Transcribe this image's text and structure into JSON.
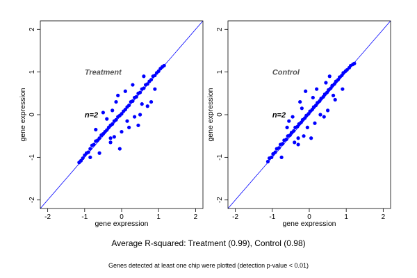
{
  "chart_data": [
    {
      "type": "scatter",
      "panel_label": "Treatment",
      "annotation": "n=2",
      "xlabel": "gene expression",
      "ylabel": "gene expression",
      "xlim": [
        -2.2,
        2.2
      ],
      "ylim": [
        -2.2,
        2.2
      ],
      "xticks": [
        -2,
        -1,
        0,
        1,
        2
      ],
      "yticks": [
        -2,
        -1,
        0,
        1,
        2
      ],
      "grid": false,
      "identity_line": true,
      "point_color": "#0000ff",
      "line_color": "#0000ff",
      "points": [
        [
          -1.15,
          -1.12
        ],
        [
          -1.1,
          -1.08
        ],
        [
          -1.05,
          -1.02
        ],
        [
          -1.0,
          -0.95
        ],
        [
          -0.95,
          -0.9
        ],
        [
          -0.9,
          -0.88
        ],
        [
          -0.85,
          -0.8
        ],
        [
          -0.8,
          -0.72
        ],
        [
          -0.75,
          -0.7
        ],
        [
          -0.7,
          -0.62
        ],
        [
          -0.65,
          -0.6
        ],
        [
          -0.6,
          -0.55
        ],
        [
          -0.55,
          -0.48
        ],
        [
          -0.5,
          -0.45
        ],
        [
          -0.45,
          -0.4
        ],
        [
          -0.4,
          -0.36
        ],
        [
          -0.35,
          -0.3
        ],
        [
          -0.3,
          -0.25
        ],
        [
          -0.25,
          -0.22
        ],
        [
          -0.2,
          -0.15
        ],
        [
          -0.15,
          -0.12
        ],
        [
          -0.1,
          -0.05
        ],
        [
          -0.05,
          -0.02
        ],
        [
          0.0,
          0.02
        ],
        [
          0.05,
          0.08
        ],
        [
          0.1,
          0.12
        ],
        [
          0.15,
          0.18
        ],
        [
          0.2,
          0.22
        ],
        [
          0.25,
          0.3
        ],
        [
          0.3,
          0.32
        ],
        [
          0.35,
          0.4
        ],
        [
          0.4,
          0.42
        ],
        [
          0.45,
          0.5
        ],
        [
          0.5,
          0.52
        ],
        [
          0.55,
          0.6
        ],
        [
          0.6,
          0.62
        ],
        [
          0.65,
          0.7
        ],
        [
          0.7,
          0.72
        ],
        [
          0.75,
          0.78
        ],
        [
          0.8,
          0.82
        ],
        [
          0.85,
          0.9
        ],
        [
          0.9,
          0.92
        ],
        [
          0.95,
          0.98
        ],
        [
          1.0,
          1.02
        ],
        [
          1.05,
          1.08
        ],
        [
          1.1,
          1.12
        ],
        [
          1.15,
          1.15
        ],
        [
          -0.3,
          -0.65
        ],
        [
          0.7,
          0.2
        ],
        [
          -0.5,
          0.05
        ],
        [
          0.1,
          0.55
        ],
        [
          -0.05,
          -0.8
        ],
        [
          -0.3,
          -0.55
        ],
        [
          -0.2,
          -0.52
        ],
        [
          0.35,
          -0.05
        ],
        [
          0.5,
          0.0
        ],
        [
          0.45,
          -0.25
        ],
        [
          -0.1,
          0.45
        ],
        [
          0.8,
          0.3
        ],
        [
          -0.7,
          -0.35
        ],
        [
          0.2,
          -0.3
        ],
        [
          -0.15,
          0.3
        ],
        [
          0.6,
          0.9
        ],
        [
          0.0,
          -0.4
        ],
        [
          -0.4,
          -0.1
        ],
        [
          0.3,
          0.7
        ],
        [
          -0.6,
          -0.9
        ],
        [
          0.9,
          0.6
        ],
        [
          -0.85,
          -1.0
        ],
        [
          0.15,
          -0.15
        ],
        [
          -0.25,
          0.1
        ],
        [
          0.55,
          0.25
        ]
      ]
    },
    {
      "type": "scatter",
      "panel_label": "Control",
      "annotation": "n=2",
      "xlabel": "gene expression",
      "ylabel": "gene expression",
      "xlim": [
        -2.2,
        2.2
      ],
      "ylim": [
        -2.2,
        2.2
      ],
      "xticks": [
        -2,
        -1,
        0,
        1,
        2
      ],
      "yticks": [
        -2,
        -1,
        0,
        1,
        2
      ],
      "grid": false,
      "identity_line": true,
      "point_color": "#0000ff",
      "line_color": "#0000ff",
      "points": [
        [
          -1.12,
          -1.1
        ],
        [
          -1.08,
          -1.02
        ],
        [
          -1.02,
          -1.0
        ],
        [
          -0.98,
          -0.92
        ],
        [
          -0.92,
          -0.88
        ],
        [
          -0.88,
          -0.8
        ],
        [
          -0.82,
          -0.78
        ],
        [
          -0.78,
          -0.7
        ],
        [
          -0.72,
          -0.68
        ],
        [
          -0.68,
          -0.6
        ],
        [
          -0.62,
          -0.58
        ],
        [
          -0.58,
          -0.5
        ],
        [
          -0.52,
          -0.48
        ],
        [
          -0.48,
          -0.42
        ],
        [
          -0.42,
          -0.38
        ],
        [
          -0.38,
          -0.3
        ],
        [
          -0.32,
          -0.28
        ],
        [
          -0.28,
          -0.22
        ],
        [
          -0.22,
          -0.18
        ],
        [
          -0.18,
          -0.12
        ],
        [
          -0.12,
          -0.08
        ],
        [
          -0.08,
          -0.02
        ],
        [
          -0.02,
          0.02
        ],
        [
          0.02,
          0.08
        ],
        [
          0.08,
          0.12
        ],
        [
          0.12,
          0.18
        ],
        [
          0.18,
          0.22
        ],
        [
          0.22,
          0.28
        ],
        [
          0.28,
          0.32
        ],
        [
          0.32,
          0.38
        ],
        [
          0.38,
          0.42
        ],
        [
          0.42,
          0.48
        ],
        [
          0.48,
          0.52
        ],
        [
          0.52,
          0.58
        ],
        [
          0.58,
          0.62
        ],
        [
          0.62,
          0.68
        ],
        [
          0.68,
          0.72
        ],
        [
          0.72,
          0.78
        ],
        [
          0.78,
          0.82
        ],
        [
          0.82,
          0.88
        ],
        [
          0.88,
          0.92
        ],
        [
          0.92,
          0.98
        ],
        [
          0.98,
          1.02
        ],
        [
          1.02,
          1.05
        ],
        [
          1.08,
          1.1
        ],
        [
          1.12,
          1.15
        ],
        [
          1.18,
          1.18
        ],
        [
          1.22,
          1.2
        ],
        [
          -0.25,
          0.3
        ],
        [
          -0.3,
          -0.7
        ],
        [
          0.5,
          0.1
        ],
        [
          -0.1,
          0.55
        ],
        [
          0.4,
          -0.05
        ],
        [
          -0.55,
          -0.15
        ],
        [
          -0.3,
          -0.55
        ],
        [
          0.05,
          -0.55
        ],
        [
          -0.4,
          -0.65
        ],
        [
          0.2,
          0.6
        ],
        [
          0.7,
          0.35
        ],
        [
          -0.15,
          -0.5
        ],
        [
          0.15,
          -0.2
        ],
        [
          -0.6,
          -0.3
        ],
        [
          0.55,
          0.9
        ],
        [
          0.9,
          0.6
        ],
        [
          -0.75,
          -1.0
        ],
        [
          0.3,
          0.0
        ],
        [
          -0.2,
          0.15
        ],
        [
          0.45,
          0.75
        ],
        [
          -0.45,
          -0.05
        ],
        [
          0.1,
          0.4
        ],
        [
          -0.05,
          -0.3
        ],
        [
          0.65,
          0.45
        ]
      ]
    }
  ],
  "captions": {
    "main": "Average R-squared: Treatment (0.99), Control (0.98)",
    "footnote": "Genes detected at least one chip were plotted (detection p-value < 0.01)"
  }
}
